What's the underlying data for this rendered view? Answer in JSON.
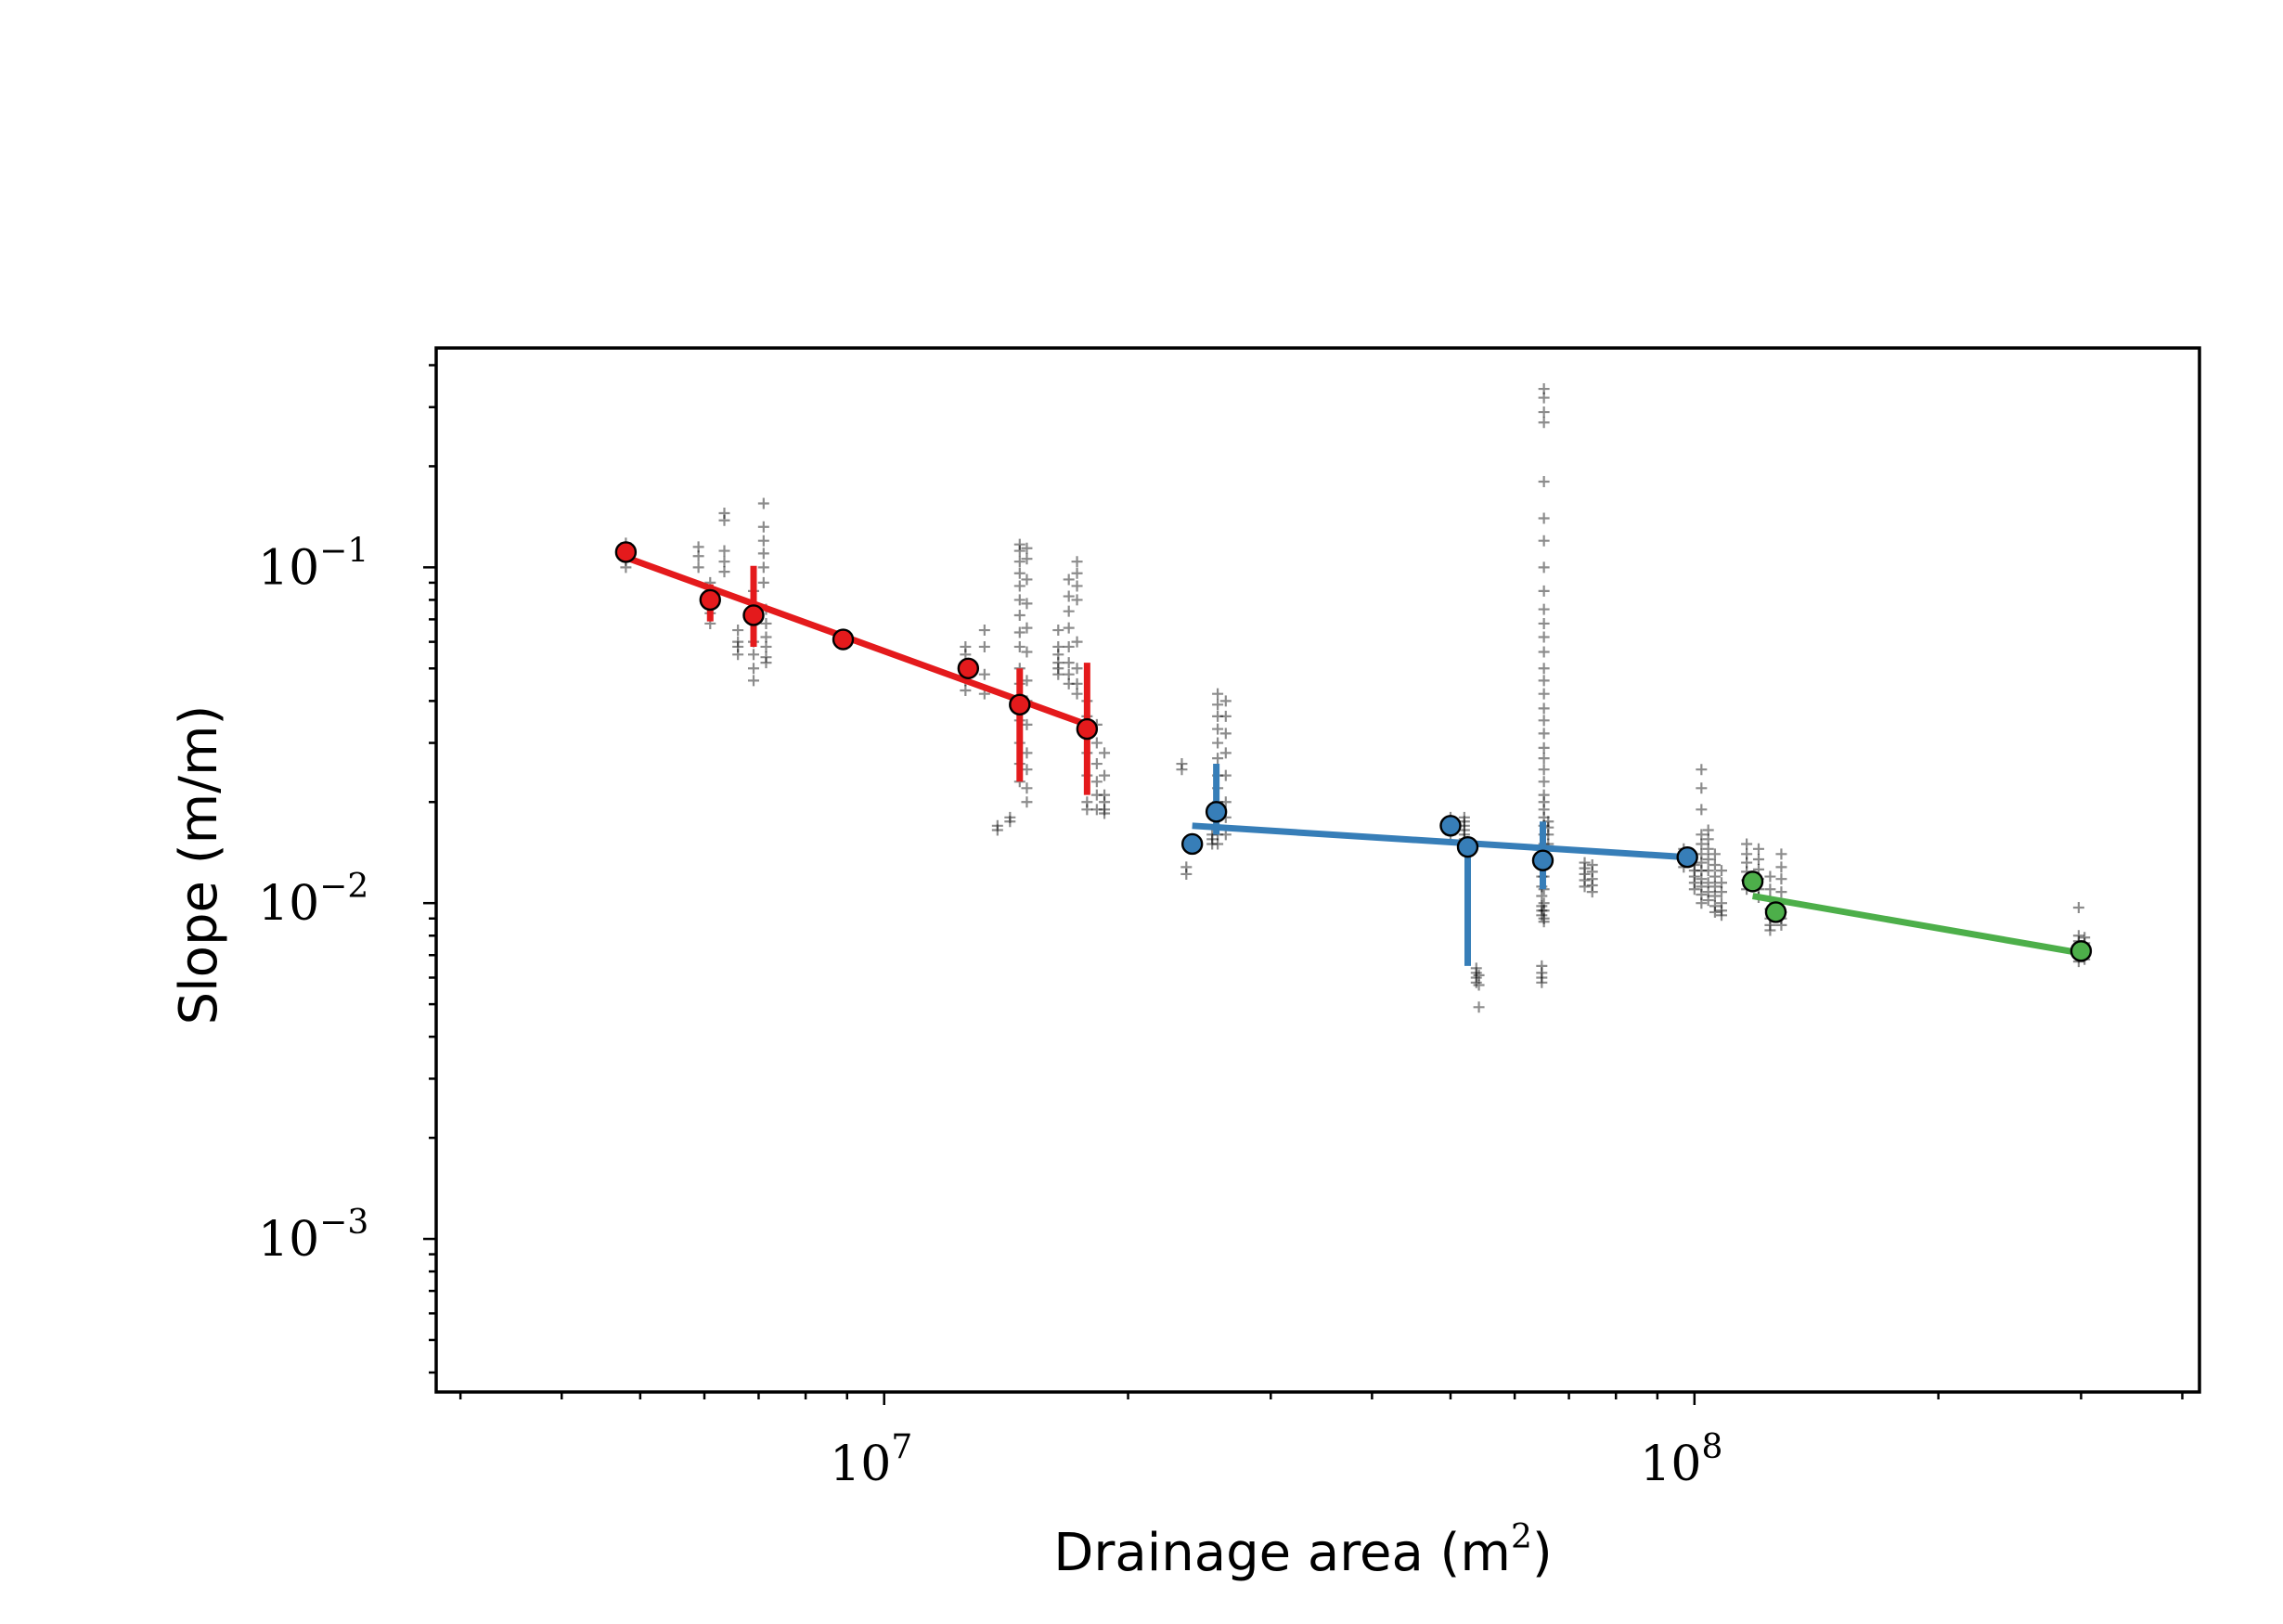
{
  "chart_data": {
    "type": "scatter",
    "title": "",
    "xlabel": "Drainage area (m",
    "xlabel_sup": "2",
    "xlabel_end": ")",
    "ylabel": "Slope (m/m)",
    "xscale": "log",
    "yscale": "log",
    "xlim": [
      2800000,
      420000000
    ],
    "ylim": [
      0.00035,
      0.45
    ],
    "x_ticks": [
      {
        "value": 10000000,
        "base": "10",
        "exp": "7"
      },
      {
        "value": 100000000,
        "base": "10",
        "exp": "8"
      }
    ],
    "y_ticks": [
      {
        "value": 0.1,
        "base": "10",
        "exp": "−1"
      },
      {
        "value": 0.01,
        "base": "10",
        "exp": "−2"
      },
      {
        "value": 0.001,
        "base": "10",
        "exp": "−3"
      }
    ],
    "grid": false,
    "legend": "none",
    "series": [
      {
        "color": "#e41a1c",
        "points": [
          {
            "x": 4800000,
            "y": 0.111,
            "err": [
              0.111,
              0.111
            ]
          },
          {
            "x": 6100000,
            "y": 0.08,
            "err": [
              0.069,
              0.089
            ]
          },
          {
            "x": 6900000,
            "y": 0.072,
            "err": [
              0.058,
              0.101
            ]
          },
          {
            "x": 8900000,
            "y": 0.061,
            "err": [
              0.061,
              0.061
            ]
          },
          {
            "x": 12700000,
            "y": 0.05,
            "err": [
              0.05,
              0.05
            ]
          },
          {
            "x": 14700000,
            "y": 0.039,
            "err": [
              0.023,
              0.05
            ]
          },
          {
            "x": 17800000,
            "y": 0.033,
            "err": [
              0.021,
              0.052
            ]
          }
        ],
        "fit": [
          [
            4800000,
            0.107
          ],
          [
            17800000,
            0.034
          ]
        ]
      },
      {
        "color": "#377eb8",
        "points": [
          {
            "x": 24000000,
            "y": 0.015,
            "err": [
              0.015,
              0.015
            ]
          },
          {
            "x": 25700000,
            "y": 0.0187,
            "err": [
              0.016,
              0.026
            ]
          },
          {
            "x": 50000000,
            "y": 0.017,
            "err": [
              0.017,
              0.017
            ]
          },
          {
            "x": 52500000,
            "y": 0.0147,
            "err": [
              0.0065,
              0.0147
            ]
          },
          {
            "x": 65000000,
            "y": 0.0134,
            "err": [
              0.011,
              0.0175
            ]
          },
          {
            "x": 98000000,
            "y": 0.0137,
            "err": [
              0.0137,
              0.0137
            ]
          }
        ],
        "fit": [
          [
            24000000,
            0.017
          ],
          [
            98000000,
            0.0137
          ]
        ]
      },
      {
        "color": "#4daf4a",
        "points": [
          {
            "x": 118000000,
            "y": 0.0116,
            "err": [
              0.0116,
              0.0116
            ]
          },
          {
            "x": 126000000,
            "y": 0.0094,
            "err": [
              0.0094,
              0.0094
            ]
          },
          {
            "x": 300000000,
            "y": 0.0072,
            "err": [
              0.0072,
              0.0072
            ]
          }
        ],
        "fit": [
          [
            118000000,
            0.0105
          ],
          [
            300000000,
            0.0071
          ]
        ]
      }
    ],
    "raw_points": {
      "marker": "plus",
      "color": "#000000",
      "columns": [
        {
          "x": 4800000,
          "y": [
            0.1,
            0.105,
            0.112,
            0.118
          ]
        },
        {
          "x": 5900000,
          "y": [
            0.115,
            0.108,
            0.1
          ]
        },
        {
          "x": 6100000,
          "y": [
            0.09,
            0.085,
            0.078,
            0.073,
            0.068
          ]
        },
        {
          "x": 6350000,
          "y": [
            0.145,
            0.138,
            0.112,
            0.104,
            0.097
          ]
        },
        {
          "x": 6600000,
          "y": [
            0.065,
            0.06,
            0.058,
            0.055
          ]
        },
        {
          "x": 6900000,
          "y": [
            0.06,
            0.055,
            0.05,
            0.046,
            0.078,
            0.085
          ]
        },
        {
          "x": 7100000,
          "y": [
            0.155,
            0.132,
            0.12,
            0.11,
            0.1,
            0.09
          ]
        },
        {
          "x": 7150000,
          "y": [
            0.075,
            0.068,
            0.062,
            0.058,
            0.054,
            0.052
          ]
        },
        {
          "x": 12600000,
          "y": [
            0.058,
            0.055,
            0.05,
            0.046,
            0.043
          ]
        },
        {
          "x": 13300000,
          "y": [
            0.065,
            0.058,
            0.048,
            0.042
          ]
        },
        {
          "x": 13800000,
          "y": [
            0.017,
            0.0165
          ]
        },
        {
          "x": 14300000,
          "y": [
            0.018,
            0.0175
          ]
        },
        {
          "x": 14700000,
          "y": [
            0.117,
            0.112,
            0.104,
            0.096,
            0.088,
            0.08,
            0.072,
            0.064,
            0.058,
            0.05,
            0.045,
            0.04,
            0.035,
            0.03,
            0.026,
            0.023
          ]
        },
        {
          "x": 15000000,
          "y": [
            0.114,
            0.106,
            0.092,
            0.078,
            0.066,
            0.056,
            0.046,
            0.04,
            0.034,
            0.028,
            0.025,
            0.022,
            0.02
          ]
        },
        {
          "x": 16400000,
          "y": [
            0.065,
            0.058,
            0.055,
            0.052,
            0.05,
            0.048
          ]
        },
        {
          "x": 16900000,
          "y": [
            0.092,
            0.082,
            0.074,
            0.066,
            0.058,
            0.052,
            0.048,
            0.045
          ]
        },
        {
          "x": 17300000,
          "y": [
            0.104,
            0.096,
            0.088,
            0.08,
            0.06,
            0.05,
            0.045,
            0.042
          ]
        },
        {
          "x": 17800000,
          "y": [
            0.04,
            0.036,
            0.032,
            0.028,
            0.024,
            0.02,
            0.019
          ]
        },
        {
          "x": 18300000,
          "y": [
            0.034,
            0.03,
            0.026,
            0.023,
            0.021,
            0.019
          ]
        },
        {
          "x": 18700000,
          "y": [
            0.028,
            0.024,
            0.021,
            0.02,
            0.019,
            0.0185
          ]
        },
        {
          "x": 23300000,
          "y": [
            0.026,
            0.025
          ]
        },
        {
          "x": 23600000,
          "y": [
            0.0128,
            0.0122
          ]
        },
        {
          "x": 25400000,
          "y": [
            0.016,
            0.0155,
            0.015
          ]
        },
        {
          "x": 25800000,
          "y": [
            0.042,
            0.039,
            0.036,
            0.033,
            0.03,
            0.027,
            0.024,
            0.022,
            0.02,
            0.018,
            0.016,
            0.015
          ]
        },
        {
          "x": 26400000,
          "y": [
            0.04,
            0.036,
            0.032,
            0.028,
            0.024,
            0.02,
            0.018,
            0.016
          ]
        },
        {
          "x": 50000000,
          "y": [
            0.018,
            0.0172,
            0.0165,
            0.016
          ]
        },
        {
          "x": 52000000,
          "y": [
            0.018,
            0.0175,
            0.017,
            0.0165,
            0.016,
            0.0155
          ]
        },
        {
          "x": 53800000,
          "y": [
            0.0064,
            0.0062,
            0.006,
            0.0058
          ]
        },
        {
          "x": 54200000,
          "y": [
            0.0061,
            0.0057,
            0.0049
          ]
        },
        {
          "x": 64800000,
          "y": [
            0.0065,
            0.0062,
            0.006,
            0.0058,
            0.0092,
            0.0095,
            0.0098,
            0.0105,
            0.0112,
            0.012,
            0.0128,
            0.0136
          ]
        },
        {
          "x": 65200000,
          "y": [
            0.34,
            0.32,
            0.29,
            0.27,
            0.18,
            0.14,
            0.12,
            0.1,
            0.085,
            0.075,
            0.068,
            0.062,
            0.056,
            0.05,
            0.046,
            0.042,
            0.038,
            0.035,
            0.032,
            0.029,
            0.027,
            0.025,
            0.023,
            0.021,
            0.02,
            0.019,
            0.018,
            0.017,
            0.016,
            0.015,
            0.014,
            0.013,
            0.012,
            0.011,
            0.01,
            0.0095,
            0.009,
            0.0088
          ]
        },
        {
          "x": 66000000,
          "y": [
            0.0175,
            0.0168,
            0.016,
            0.015
          ]
        },
        {
          "x": 73200000,
          "y": [
            0.0132,
            0.0127,
            0.0122,
            0.0117,
            0.0112
          ]
        },
        {
          "x": 74800000,
          "y": [
            0.013,
            0.0124,
            0.0118,
            0.0113,
            0.0108
          ]
        },
        {
          "x": 97000000,
          "y": [
            0.0145,
            0.014,
            0.0134,
            0.0128
          ]
        },
        {
          "x": 100000000,
          "y": [
            0.013,
            0.0125,
            0.012,
            0.0115,
            0.011
          ]
        },
        {
          "x": 102000000,
          "y": [
            0.025,
            0.022,
            0.019,
            0.016,
            0.015,
            0.014,
            0.0132,
            0.0125,
            0.0118,
            0.0112,
            0.0106,
            0.01
          ]
        },
        {
          "x": 104000000,
          "y": [
            0.0165,
            0.0155,
            0.0145,
            0.0135,
            0.0125,
            0.0115,
            0.0108,
            0.0102
          ]
        },
        {
          "x": 106000000,
          "y": [
            0.014,
            0.013,
            0.012,
            0.0112,
            0.0105,
            0.0098,
            0.0094
          ]
        },
        {
          "x": 108000000,
          "y": [
            0.0125,
            0.0115,
            0.0108,
            0.01,
            0.0095,
            0.0092
          ]
        },
        {
          "x": 116000000,
          "y": [
            0.015,
            0.014,
            0.0132,
            0.0124,
            0.0117,
            0.011
          ]
        },
        {
          "x": 120000000,
          "y": [
            0.0145,
            0.0135,
            0.0126,
            0.0118,
            0.011,
            0.0104
          ]
        },
        {
          "x": 124000000,
          "y": [
            0.012,
            0.011,
            0.0102,
            0.0096,
            0.009,
            0.0086,
            0.0083
          ]
        },
        {
          "x": 128000000,
          "y": [
            0.014,
            0.0128,
            0.0118,
            0.0108,
            0.01,
            0.0094,
            0.009,
            0.0086
          ]
        },
        {
          "x": 298000000,
          "y": [
            0.0097,
            0.008,
            0.0077,
            0.0074,
            0.0071,
            0.0069,
            0.0067
          ]
        },
        {
          "x": 303000000,
          "y": [
            0.0079,
            0.0076,
            0.0073,
            0.007,
            0.0068
          ]
        }
      ]
    }
  }
}
